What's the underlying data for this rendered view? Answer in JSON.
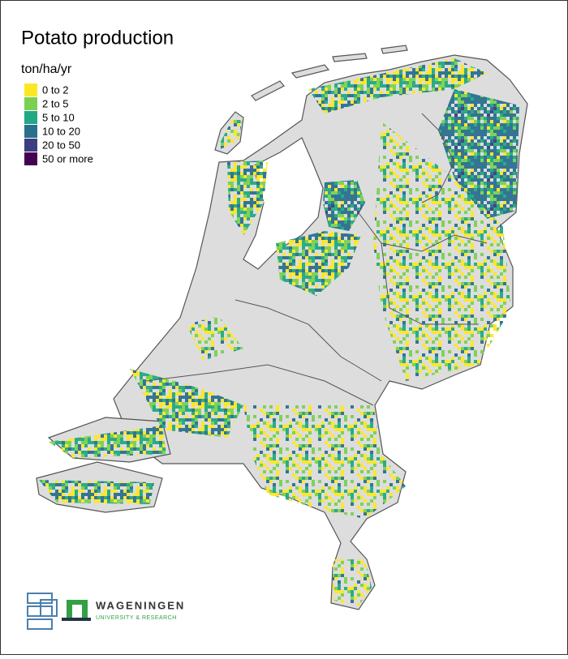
{
  "title": "Potato production",
  "legend": {
    "title": "ton/ha/yr",
    "items": [
      {
        "label": "0 to 2",
        "color": "#fde725"
      },
      {
        "label": "2 to 5",
        "color": "#7ad151"
      },
      {
        "label": "5 to 10",
        "color": "#22a884"
      },
      {
        "label": "10 to 20",
        "color": "#2a6f8e"
      },
      {
        "label": "20 to 50",
        "color": "#3b3f80"
      },
      {
        "label": "50 or more",
        "color": "#440154"
      }
    ]
  },
  "logos": {
    "name": "WAGENINGEN",
    "tagline": "UNIVERSITY & RESEARCH"
  }
}
